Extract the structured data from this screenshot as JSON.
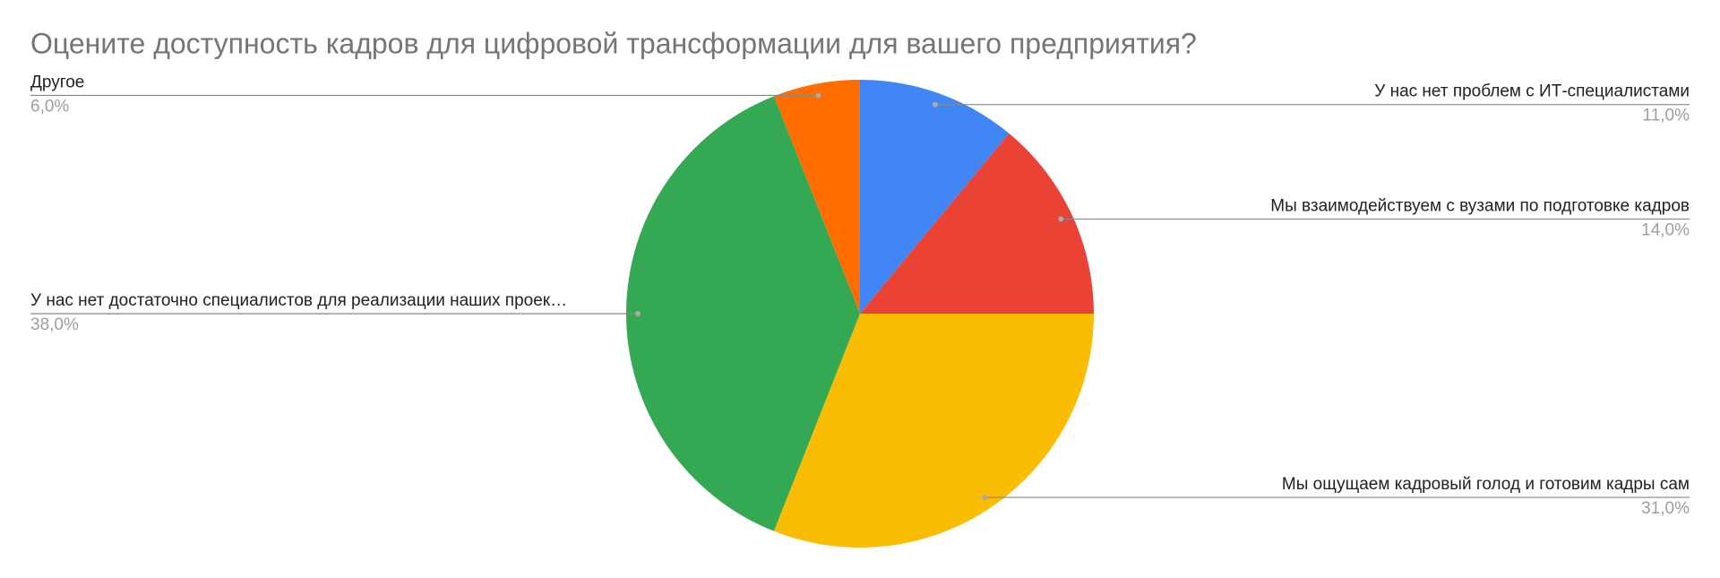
{
  "chart_data": {
    "type": "pie",
    "title": "Оцените доступность кадров для цифровой трансформации для вашего предприятия?",
    "categories": [
      "У нас нет проблем с ИТ-специалистами",
      "Мы взаимодействуем с вузами по подготовке кадров",
      "Мы ощущаем кадровый голод и готовим кадры сам",
      "У нас нет достаточно специалистов для реализации наших проек…",
      "Другое"
    ],
    "values": [
      11,
      14,
      31,
      38,
      6
    ],
    "value_labels": [
      "11,0%",
      "14,0%",
      "31,0%",
      "38,0%",
      "6,0%"
    ],
    "colors": [
      "#4285f4",
      "#ea4335",
      "#fbbc04",
      "#34a853",
      "#ff6d01"
    ]
  }
}
